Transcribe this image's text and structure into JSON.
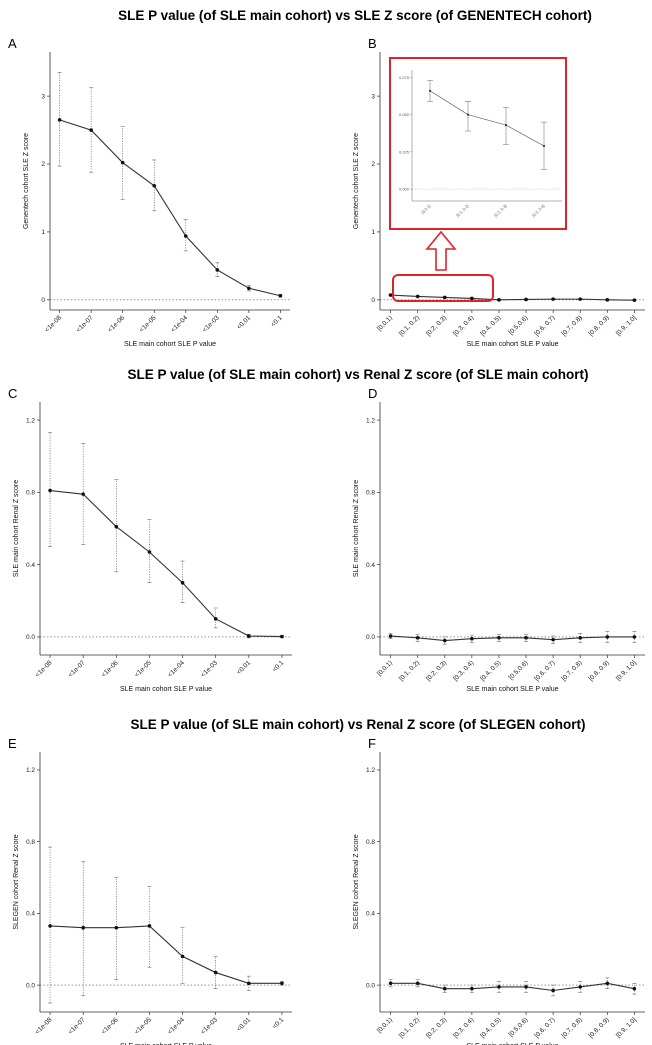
{
  "titles": [
    "SLE P value (of SLE main cohort) vs SLE Z score (of GENENTECH cohort)",
    "SLE P value (of SLE main cohort) vs Renal Z score (of SLE main cohort)",
    "SLE P value (of SLE main cohort) vs Renal Z score (of SLEGEN cohort)"
  ],
  "colors": {
    "line": "#333333",
    "highlight": "#e0232b",
    "errorbar": "#555555"
  },
  "chart_data": [
    {
      "panel": "A",
      "type": "line",
      "xlabel": "SLE main cohort SLE P value",
      "ylabel": "Genentech cohort SLE Z score",
      "categories": [
        "<1e-08",
        "<1e-07",
        "<1e-06",
        "<1e-05",
        "<1e-04",
        "<1e-03",
        "<0.01",
        "<0.1"
      ],
      "values": [
        2.65,
        2.5,
        2.02,
        1.68,
        0.94,
        0.44,
        0.17,
        0.06
      ],
      "err_low": [
        1.97,
        1.88,
        1.48,
        1.31,
        0.72,
        0.34,
        0.13,
        0.04
      ],
      "err_high": [
        3.35,
        3.13,
        2.55,
        2.06,
        1.18,
        0.55,
        0.21,
        0.08
      ],
      "yticks": [
        "0",
        "1",
        "2",
        "3"
      ],
      "ylim": [
        -0.15,
        3.65
      ],
      "reference_line": 0
    },
    {
      "panel": "B",
      "type": "line",
      "xlabel": "SLE main cohort SLE P value",
      "ylabel": "Genentech cohort SLE Z score",
      "categories": [
        "[0,0.1)",
        "[0.1, 0.2)",
        "[0.2, 0.3)",
        "[0.3, 0.4)",
        "[0.4, 0.5)",
        "[0.5,0.6)",
        "[0.6, 0.7)",
        "[0.7, 0.8)",
        "[0.8, 0.9)",
        "[0.9, 1.0]"
      ],
      "values": [
        0.07,
        0.05,
        0.035,
        0.02,
        0.0,
        0.005,
        0.01,
        0.01,
        0.0,
        -0.005
      ],
      "err_low": [
        0.06,
        0.04,
        0.025,
        0.01,
        -0.01,
        -0.005,
        0.0,
        0.0,
        -0.01,
        -0.015
      ],
      "err_high": [
        0.08,
        0.06,
        0.045,
        0.03,
        0.01,
        0.015,
        0.02,
        0.02,
        0.01,
        0.005
      ],
      "yticks": [
        "0",
        "1",
        "2",
        "3"
      ],
      "ylim": [
        -0.15,
        3.65
      ],
      "reference_line": 0,
      "inset": {
        "categories": [
          "[0,0.1)",
          "[0.1, 0.2)",
          "[0.2, 0.3)",
          "[0.3, 0.4)"
        ],
        "values": [
          0.066,
          0.05,
          0.043,
          0.029
        ],
        "err_low": [
          0.059,
          0.039,
          0.03,
          0.013
        ],
        "err_high": [
          0.073,
          0.059,
          0.055,
          0.045
        ],
        "yticks": [
          "0.000",
          "0.025",
          "0.050",
          "0.075"
        ],
        "ylim": [
          -0.008,
          0.08
        ]
      }
    },
    {
      "panel": "C",
      "type": "line",
      "xlabel": "SLE main cohort SLE P value",
      "ylabel": "SLE main cohort Renal Z score",
      "categories": [
        "<1e-08",
        "<1e-07",
        "<1e-06",
        "<1e-05",
        "<1e-04",
        "<1e-03",
        "<0.01",
        "<0.1"
      ],
      "values": [
        0.81,
        0.79,
        0.61,
        0.47,
        0.3,
        0.1,
        0.005,
        0.002
      ],
      "err_low": [
        0.5,
        0.51,
        0.36,
        0.3,
        0.19,
        0.05,
        -0.005,
        -0.003
      ],
      "err_high": [
        1.13,
        1.07,
        0.87,
        0.65,
        0.42,
        0.16,
        0.015,
        0.007
      ],
      "yticks": [
        "0.0",
        "0.4",
        "0.8",
        "1.2"
      ],
      "ylim": [
        -0.1,
        1.3
      ],
      "reference_line": 0
    },
    {
      "panel": "D",
      "type": "line",
      "xlabel": "SLE main cohort SLE P value",
      "ylabel": "SLE main cohort Renal Z score",
      "categories": [
        "[0,0.1)",
        "[0.1, 0.2)",
        "[0.2, 0.3)",
        "[0.3, 0.4)",
        "[0.4, 0.5)",
        "[0.5,0.6)",
        "[0.6, 0.7)",
        "[0.7, 0.8)",
        "[0.8, 0.9)",
        "[0.9, 1.0]"
      ],
      "values": [
        0.005,
        -0.005,
        -0.02,
        -0.01,
        -0.005,
        -0.005,
        -0.015,
        -0.005,
        0.0,
        0.0
      ],
      "err_low": [
        -0.01,
        -0.025,
        -0.04,
        -0.03,
        -0.025,
        -0.025,
        -0.035,
        -0.03,
        -0.03,
        -0.03
      ],
      "err_high": [
        0.02,
        0.015,
        0.0,
        0.01,
        0.015,
        0.015,
        0.005,
        0.02,
        0.03,
        0.03
      ],
      "yticks": [
        "0.0",
        "0.4",
        "0.8",
        "1.2"
      ],
      "ylim": [
        -0.1,
        1.3
      ],
      "reference_line": 0
    },
    {
      "panel": "E",
      "type": "line",
      "xlabel": "SLE main cohort SLE P value",
      "ylabel": "SLEGEN cohort Renal Z score",
      "categories": [
        "<1e-08",
        "<1e-07",
        "<1e-06",
        "<1e-05",
        "<1e-04",
        "<1e-03",
        "<0.01",
        "<0.1"
      ],
      "values": [
        0.33,
        0.32,
        0.32,
        0.33,
        0.16,
        0.07,
        0.01,
        0.01
      ],
      "err_low": [
        -0.1,
        -0.06,
        0.03,
        0.1,
        0.01,
        -0.02,
        -0.03,
        0.0
      ],
      "err_high": [
        0.77,
        0.69,
        0.6,
        0.55,
        0.32,
        0.16,
        0.05,
        0.02
      ],
      "yticks": [
        "0.0",
        "0.4",
        "0.8",
        "1.2"
      ],
      "ylim": [
        -0.15,
        1.3
      ],
      "reference_line": 0
    },
    {
      "panel": "F",
      "type": "line",
      "xlabel": "SLE main cohort SLE P value",
      "ylabel": "SLEGEN cohort Renal Z score",
      "categories": [
        "[0,0.1)",
        "[0.1, 0.2)",
        "[0.2, 0.3)",
        "[0.3, 0.4)",
        "[0.4, 0.5)",
        "[0.5,0.6)",
        "[0.6, 0.7)",
        "[0.7, 0.8)",
        "[0.8, 0.9)",
        "[0.9, 1.0]"
      ],
      "values": [
        0.01,
        0.01,
        -0.02,
        -0.02,
        -0.01,
        -0.01,
        -0.03,
        -0.01,
        0.01,
        -0.02
      ],
      "err_low": [
        -0.01,
        -0.01,
        -0.04,
        -0.04,
        -0.04,
        -0.04,
        -0.06,
        -0.04,
        -0.02,
        -0.05
      ],
      "err_high": [
        0.03,
        0.03,
        0.0,
        0.0,
        0.02,
        0.02,
        0.0,
        0.02,
        0.04,
        0.01
      ],
      "yticks": [
        "0.0",
        "0.4",
        "0.8",
        "1.2"
      ],
      "ylim": [
        -0.15,
        1.3
      ],
      "reference_line": 0
    }
  ]
}
